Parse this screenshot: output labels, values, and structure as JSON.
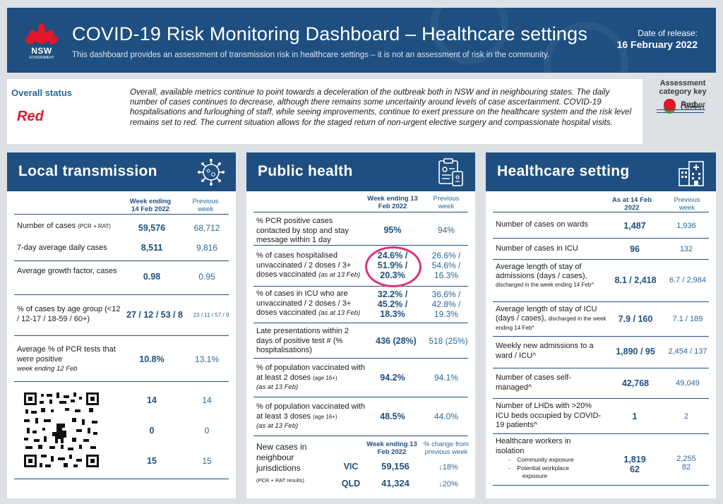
{
  "header": {
    "logo_text": "NSW",
    "logo_sub": "GOVERNMENT",
    "title": "COVID-19 Risk Monitoring Dashboard – Healthcare settings",
    "subtitle": "This dashboard provides an assessment of transmission risk in healthcare settings – it is not an assessment of risk in the community.",
    "release_label": "Date of release:",
    "release_date": "16 February 2022"
  },
  "status": {
    "label": "Overall status",
    "value": "Red",
    "summary": "Overall, available metrics continue to point towards a deceleration of the outbreak both in NSW and in neighbouring states. The daily number of cases continues to decrease, although there remains some uncertainty around levels of case ascertainment. COVID-19 hospitalisations and furloughing of staff, while seeing improvements, continue to exert pressure on the healthcare system and the risk level remains set to red. The current situation allows for the staged return of non-urgent elective surgery and compassionate hospital visits."
  },
  "key": {
    "title": "Assessment category key",
    "items": [
      {
        "label": "Green",
        "color": "#3d9a45"
      },
      {
        "label": "Amber",
        "color": "#f08a24"
      },
      {
        "label": "Red",
        "color": "#e0182a"
      }
    ]
  },
  "colors": {
    "navy": "#1e4f80",
    "accent_blue": "#2b6799",
    "highlight_circle": "#e0307a"
  },
  "local": {
    "title": "Local transmission",
    "icon": "virus-icon",
    "col_a": "Week ending 14 Feb 2022",
    "col_b": "Previous week",
    "rows": [
      {
        "label": "Number of cases",
        "label_small": "(PCR + RAT)",
        "current": "59,576",
        "previous": "68,712"
      },
      {
        "label": "7-day average daily cases",
        "current": "8,511",
        "previous": "9,816"
      },
      {
        "label": "Average growth factor, cases",
        "current": "0.98",
        "previous": "0.95"
      },
      {
        "label": "% of cases by age group (<12 / 12-17 / 18-59 / 60+)",
        "current": "27 / 12 / 53 / 8",
        "previous": "23 / 11 / 57 / 9"
      },
      {
        "label": "Average % of PCR tests that were positive",
        "note": "week ending 12 Feb",
        "current": "10.8%",
        "previous": "13.1%"
      },
      {
        "current": "14",
        "previous": "14"
      },
      {
        "current": "0",
        "previous": "0"
      },
      {
        "current": "15",
        "previous": "15"
      }
    ]
  },
  "public": {
    "title": "Public health",
    "icon": "clipboard-phone-icon",
    "col_a": "Week ending 13 Feb 2022",
    "col_b": "Previous week",
    "rows": [
      {
        "label": "% PCR positive cases contacted by stop and stay message within 1 day",
        "current": "95%",
        "previous": "94%"
      },
      {
        "label": "% of cases hospitalised unvaccinated / 2 doses / 3+ doses vaccinated",
        "note": "(as at 13 Feb)",
        "current1": "24.6% /",
        "current2": "51.9% /",
        "current3": "20.3%",
        "previous1": "26.6% /",
        "previous2": "54.6% /",
        "previous3": "16.3%"
      },
      {
        "label": "% of cases in ICU who are unvaccinated / 2 doses / 3+ doses vaccinated",
        "note": "(as at 13 Feb)",
        "current1": "32.2% /",
        "current2": "45.2% /",
        "current3": "18.3%",
        "previous1": "36.6% /",
        "previous2": "42.8% /",
        "previous3": "19.3%"
      },
      {
        "label": "Late presentations within 2 days of positive test # (% hospitalisations)",
        "current": "436 (28%)",
        "previous": "518 (25%)"
      },
      {
        "label": "% of population vaccinated with at least 2 doses",
        "label_small": "(age 16+)",
        "note": "(as at 13 Feb)",
        "current": "94.2%",
        "previous": "94.1%"
      },
      {
        "label": "% of population vaccinated with at least 3 doses",
        "label_small": "(age 16+)",
        "note": "(as at 13 Feb)",
        "current": "48.5%",
        "previous": "44.0%"
      }
    ],
    "neighbour": {
      "label": "New cases in neighbour jurisdictions",
      "label_small": "(PCR + RAT results)",
      "col_a": "Week ending 13 Feb 2022",
      "col_b": "% change from previous week",
      "rows": [
        {
          "state": "VIC",
          "value": "59,156",
          "change": "↓18%"
        },
        {
          "state": "QLD",
          "value": "41,324",
          "change": "↓20%"
        }
      ]
    }
  },
  "health": {
    "title": "Healthcare setting",
    "icon": "hospital-icon",
    "col_a": "As at 14 Feb 2022",
    "col_b": "Previous week",
    "rows": [
      {
        "label": "Number of cases on wards",
        "current": "1,487",
        "previous": "1,936"
      },
      {
        "label": "Number of cases in ICU",
        "current": "96",
        "previous": "132"
      },
      {
        "label": "Average length of stay of admissions (days / cases),",
        "label_small": "discharged in the week ending 14 Feb^",
        "current": "8.1 / 2,418",
        "previous": "6.7 / 2,984"
      },
      {
        "label": "Average length of stay of ICU (days / cases),",
        "label_small": "discharged in the week ending 14 Feb^",
        "current": "7.9 / 160",
        "previous": "7.1 / 189"
      },
      {
        "label": "Weekly new admissions to a ward / ICU^",
        "current": "1,890 / 95",
        "previous": "2,454 / 137"
      },
      {
        "label": "Number of cases self-managed^",
        "current": "42,768",
        "previous": "49,049"
      },
      {
        "label": "Number of LHDs with >20% ICU beds occupied by COVID-19 patients^",
        "current": "1",
        "previous": "2"
      },
      {
        "label": "Healthcare workers in isolation",
        "sub1": "Community exposure",
        "sub2": "Potential workplace exposure",
        "current1": "1,819",
        "current2": "62",
        "previous1": "2,255",
        "previous2": "82"
      }
    ]
  }
}
